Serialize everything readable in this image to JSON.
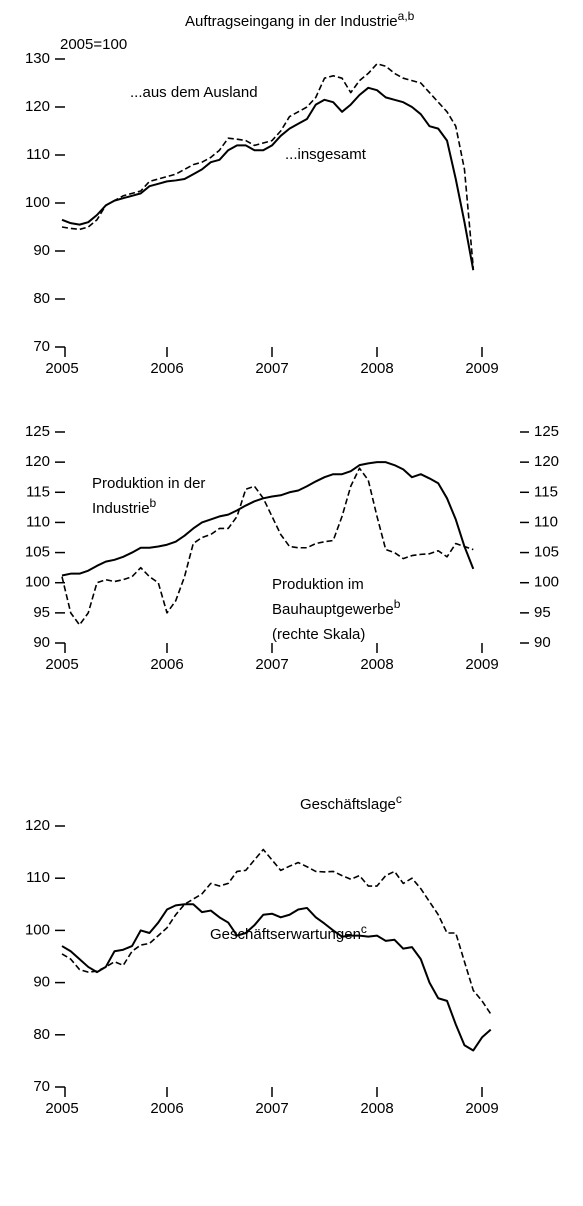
{
  "chart_data": [
    {
      "type": "line",
      "title": "Auftragseingang in der Industrie",
      "title_sup": "a,b",
      "unit": "2005=100",
      "annotations": [
        {
          "text": "...aus dem Ausland"
        },
        {
          "text": "...insgesamt"
        }
      ],
      "x": [
        2005,
        2005.083,
        2005.167,
        2005.25,
        2005.333,
        2005.417,
        2005.5,
        2005.583,
        2005.667,
        2005.75,
        2005.833,
        2005.917,
        2006,
        2006.083,
        2006.167,
        2006.25,
        2006.333,
        2006.417,
        2006.5,
        2006.583,
        2006.667,
        2006.75,
        2006.833,
        2006.917,
        2007,
        2007.083,
        2007.167,
        2007.25,
        2007.333,
        2007.417,
        2007.5,
        2007.583,
        2007.667,
        2007.75,
        2007.833,
        2007.917,
        2008,
        2008.083,
        2008.167,
        2008.25,
        2008.333,
        2008.417,
        2008.5,
        2008.583,
        2008.667,
        2008.75,
        2008.833,
        2008.917
      ],
      "xlim": [
        2005,
        2009
      ],
      "xticks": [
        2005,
        2006,
        2007,
        2008,
        2009
      ],
      "ylim": [
        70,
        130
      ],
      "yticks": [
        70,
        80,
        90,
        100,
        110,
        120,
        130
      ],
      "series": [
        {
          "color": "#000000",
          "dashed": false,
          "values": [
            96.5,
            95.8,
            95.5,
            96,
            97.5,
            99.5,
            100.5,
            101,
            101.5,
            102,
            103.5,
            104,
            104.5,
            104.7,
            105,
            106,
            107,
            108.5,
            109,
            111,
            112,
            112,
            111,
            111,
            112,
            114,
            115.5,
            116.5,
            117.5,
            120.5,
            121.5,
            121,
            119,
            120.5,
            122.5,
            124,
            123.5,
            122,
            121.5,
            121,
            120,
            118.5,
            116,
            115.5,
            113,
            105,
            96,
            86
          ]
        },
        {
          "color": "#000000",
          "dashed": true,
          "values": [
            95,
            94.7,
            94.5,
            95,
            96.5,
            99.5,
            100.5,
            101.5,
            102,
            102.5,
            104.5,
            105,
            105.5,
            106,
            107,
            108,
            108.5,
            109.5,
            111,
            113.5,
            113.3,
            113,
            112,
            112.5,
            113,
            115,
            118,
            119,
            120,
            122,
            126,
            126.5,
            126,
            123,
            125.5,
            127,
            129,
            128.5,
            127,
            126,
            125.5,
            125,
            123,
            121,
            119,
            116,
            107,
            86.5
          ]
        }
      ]
    },
    {
      "type": "line",
      "annotations": [
        {
          "text": "Produktion in der"
        },
        {
          "text": "Industrie",
          "sup": "b"
        },
        {
          "text": "Produktion im"
        },
        {
          "text": "Bauhauptgewerbe",
          "sup": "b"
        },
        {
          "text": "(rechte Skala)"
        }
      ],
      "x": [
        2005,
        2005.083,
        2005.167,
        2005.25,
        2005.333,
        2005.417,
        2005.5,
        2005.583,
        2005.667,
        2005.75,
        2005.833,
        2005.917,
        2006,
        2006.083,
        2006.167,
        2006.25,
        2006.333,
        2006.417,
        2006.5,
        2006.583,
        2006.667,
        2006.75,
        2006.833,
        2006.917,
        2007,
        2007.083,
        2007.167,
        2007.25,
        2007.333,
        2007.417,
        2007.5,
        2007.583,
        2007.667,
        2007.75,
        2007.833,
        2007.917,
        2008,
        2008.083,
        2008.167,
        2008.25,
        2008.333,
        2008.417,
        2008.5,
        2008.583,
        2008.667,
        2008.75,
        2008.833,
        2008.917
      ],
      "xlim": [
        2005,
        2009
      ],
      "xticks": [
        2005,
        2006,
        2007,
        2008,
        2009
      ],
      "ylim": [
        90,
        125
      ],
      "yticks": [
        90,
        95,
        100,
        105,
        110,
        115,
        120,
        125
      ],
      "y2lim": [
        90,
        125
      ],
      "y2ticks": [
        90,
        95,
        100,
        105,
        110,
        115,
        120,
        125
      ],
      "series": [
        {
          "color": "#000000",
          "dashed": false,
          "values": [
            101.2,
            101.5,
            101.5,
            102,
            102.8,
            103.5,
            103.8,
            104.3,
            105,
            105.8,
            105.8,
            106,
            106.3,
            106.8,
            107.8,
            109,
            110,
            110.5,
            111,
            111.3,
            112,
            112.8,
            113.5,
            114,
            114.3,
            114.5,
            115,
            115.3,
            116,
            116.8,
            117.5,
            118,
            118,
            118.5,
            119.5,
            119.8,
            120,
            120,
            119.5,
            118.8,
            117.5,
            118,
            117.3,
            116.5,
            114,
            110.5,
            106,
            102.3
          ]
        },
        {
          "color": "#000000",
          "dashed": true,
          "axis": "y2",
          "values": [
            101,
            95,
            93,
            95,
            100,
            100.5,
            100.2,
            100.5,
            101,
            102.5,
            101,
            100,
            95,
            97,
            101,
            106.5,
            107.5,
            108,
            109,
            109,
            111,
            115.5,
            116,
            114,
            111,
            108,
            106,
            105.8,
            105.8,
            106.5,
            106.8,
            107,
            111,
            116,
            119,
            117,
            111,
            105.5,
            105,
            104,
            104.5,
            104.7,
            104.8,
            105.3,
            104.3,
            106.5,
            106,
            105.5
          ]
        }
      ]
    },
    {
      "type": "line",
      "annotations": [
        {
          "text": "Geschäftslage",
          "sup": "c"
        },
        {
          "text": "Geschäftserwartungen",
          "sup": "c"
        }
      ],
      "x": [
        2005,
        2005.083,
        2005.167,
        2005.25,
        2005.333,
        2005.417,
        2005.5,
        2005.583,
        2005.667,
        2005.75,
        2005.833,
        2005.917,
        2006,
        2006.083,
        2006.167,
        2006.25,
        2006.333,
        2006.417,
        2006.5,
        2006.583,
        2006.667,
        2006.75,
        2006.833,
        2006.917,
        2007,
        2007.083,
        2007.167,
        2007.25,
        2007.333,
        2007.417,
        2007.5,
        2007.583,
        2007.667,
        2007.75,
        2007.833,
        2007.917,
        2008,
        2008.083,
        2008.167,
        2008.25,
        2008.333,
        2008.417,
        2008.5,
        2008.583,
        2008.667,
        2008.75,
        2008.833,
        2008.917,
        2009,
        2009.083
      ],
      "xlim": [
        2005,
        2009
      ],
      "xticks": [
        2005,
        2006,
        2007,
        2008,
        2009
      ],
      "ylim": [
        70,
        120
      ],
      "yticks": [
        70,
        80,
        90,
        100,
        110,
        120
      ],
      "series": [
        {
          "color": "#000000",
          "dashed": false,
          "values": [
            97,
            96,
            94.5,
            93,
            92,
            93,
            96,
            96.3,
            97,
            100,
            99.5,
            101.5,
            104,
            104.8,
            105,
            105,
            103.5,
            103.8,
            102.5,
            101.5,
            99,
            99.5,
            101,
            103,
            103.2,
            102.5,
            103,
            104,
            104.3,
            102.5,
            101.3,
            100,
            98.8,
            99,
            99,
            98.8,
            99,
            98,
            98.2,
            96.5,
            96.8,
            94.5,
            90,
            87,
            86.5,
            82,
            78,
            77,
            79.5,
            81
          ]
        },
        {
          "color": "#000000",
          "dashed": true,
          "values": [
            95.5,
            94.5,
            92.5,
            92,
            92.2,
            93,
            94,
            93.3,
            96,
            97.2,
            97.5,
            99,
            100.5,
            103,
            105,
            106,
            107,
            109,
            108.5,
            109,
            111.3,
            111.5,
            113.5,
            115.5,
            113.5,
            111.5,
            112.3,
            113,
            112.2,
            111.3,
            111.2,
            111.3,
            110.5,
            109.8,
            110.5,
            108.5,
            108.5,
            110.5,
            111.3,
            109,
            110,
            108,
            105.5,
            103,
            99.5,
            99.5,
            94,
            88.5,
            86.5,
            84
          ]
        }
      ]
    }
  ]
}
